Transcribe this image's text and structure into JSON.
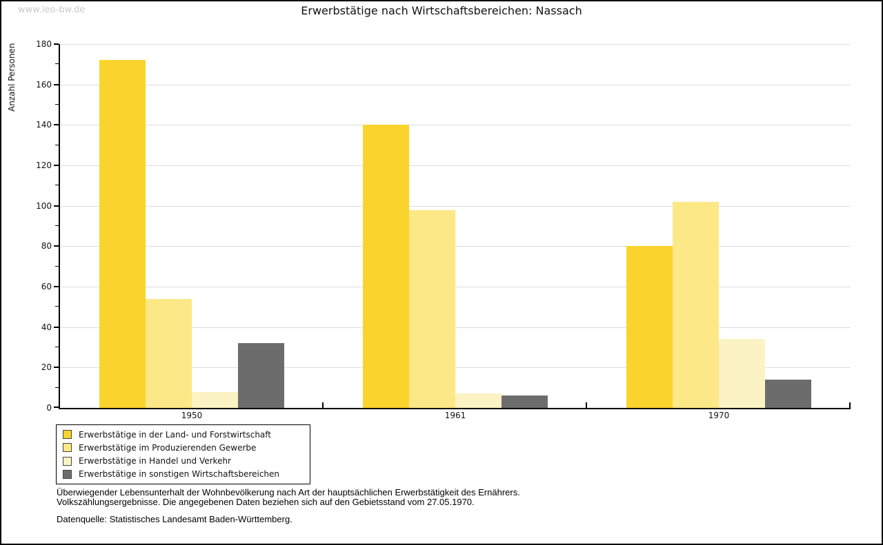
{
  "watermark": "www.leo-bw.de",
  "title": "Erwerbstätige nach Wirtschaftsbereichen: Nassach",
  "chart_data": {
    "type": "bar",
    "title": "Erwerbstätige nach Wirtschaftsbereichen: Nassach",
    "xlabel": "",
    "ylabel": "Anzahl Personen",
    "ylim": [
      0,
      180
    ],
    "ytick_step": 20,
    "ytick_minor_step": 10,
    "grid": true,
    "gridline_color": "#dddddd",
    "legend_position": "bottom-left",
    "categories": [
      "1950",
      "1961",
      "1970"
    ],
    "series": [
      {
        "name": "Erwerbstätige in der Land- und Forstwirtschaft",
        "color": "#fbd32d",
        "values": [
          172,
          140,
          80
        ]
      },
      {
        "name": "Erwerbstätige im Produzierenden Gewerbe",
        "color": "#fce886",
        "values": [
          54,
          98,
          102
        ]
      },
      {
        "name": "Erwerbstätige in Handel und Verkehr",
        "color": "#fcf3c5",
        "values": [
          8,
          7,
          34
        ]
      },
      {
        "name": "Erwerbstätige in sonstigen Wirtschaftsbereichen",
        "color": "#6c6c6c",
        "values": [
          32,
          6,
          14
        ]
      }
    ]
  },
  "footer": {
    "note_line1": "Überwiegender Lebensunterhalt der Wohnbevölkerung nach Art der hauptsächlichen Erwerbstätigkeit des Ernährers.",
    "note_line2": "Volkszählungsergebnisse. Die angegebenen Daten beziehen sich auf den Gebietsstand vom 27.05.1970.",
    "source": "Datenquelle: Statistisches Landesamt Baden-Württemberg."
  }
}
